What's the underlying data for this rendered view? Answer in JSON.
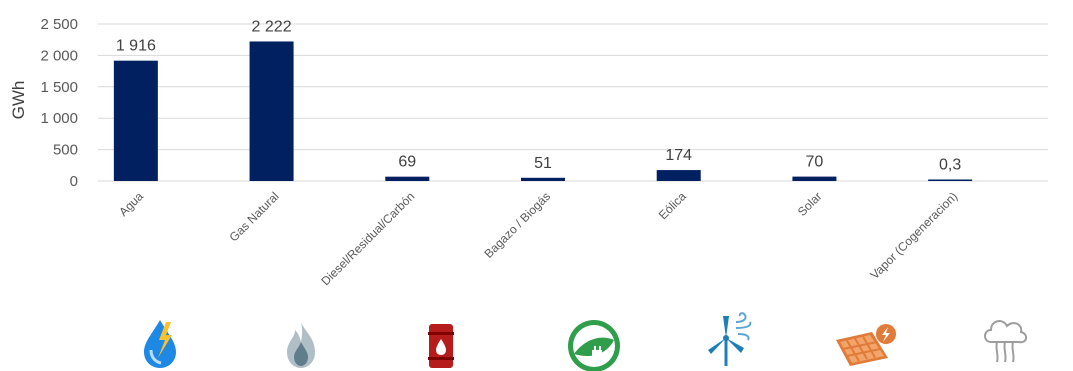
{
  "chart_data": {
    "type": "bar",
    "ylabel": "GWh",
    "ylim": [
      0,
      2500
    ],
    "yticks": [
      0,
      500,
      1000,
      1500,
      2000,
      2500
    ],
    "ytick_labels": [
      "0",
      "500",
      "1 000",
      "1 500",
      "2 000",
      "2 500"
    ],
    "grid": true,
    "bar_color": "#002060",
    "categories": [
      "Agua",
      "Gas Natural",
      "Diesel/Residual/Carbón",
      "Bagazo / Biogás",
      "Eólica",
      "Solar",
      "Vapor (Cogeneracion)"
    ],
    "values": [
      1916,
      2222,
      69,
      51,
      174,
      70,
      0.3
    ],
    "value_labels": [
      "1 916",
      "2 222",
      "69",
      "51",
      "174",
      "70",
      "0,3"
    ]
  },
  "icons": [
    {
      "name": "water-lightning-icon",
      "color": "#1e88e5"
    },
    {
      "name": "natural-gas-flame-icon",
      "color": "#90a4ae"
    },
    {
      "name": "oil-barrel-icon",
      "color": "#b71c1c"
    },
    {
      "name": "biogas-leaf-plug-icon",
      "color": "#2e9e4a"
    },
    {
      "name": "wind-turbine-icon",
      "color": "#1e7fb8"
    },
    {
      "name": "solar-panel-icon",
      "color": "#e07b39"
    },
    {
      "name": "steam-cloud-icon",
      "color": "#9e9e9e"
    }
  ]
}
